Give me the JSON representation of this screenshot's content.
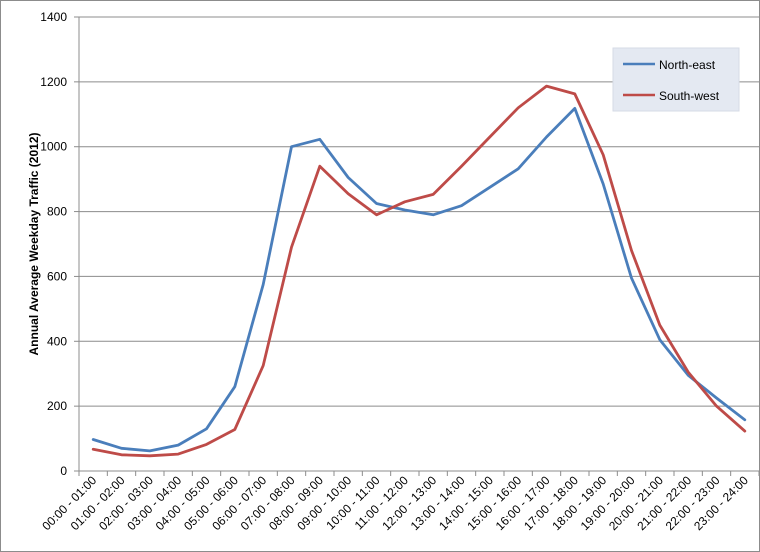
{
  "chart_data": {
    "type": "line",
    "title": "",
    "xlabel": "",
    "ylabel": "Annual Average Weekday Traffic (2012)",
    "ylim": [
      0,
      1400
    ],
    "yticks": [
      0,
      200,
      400,
      600,
      800,
      1000,
      1200,
      1400
    ],
    "grid": true,
    "legend_position": "top-right",
    "categories": [
      "00:00 - 01:00",
      "01:00 - 02:00",
      "02:00 - 03:00",
      "03:00 - 04:00",
      "04:00 - 05:00",
      "05:00 - 06:00",
      "06:00 - 07:00",
      "07:00 - 08:00",
      "08:00 - 09:00",
      "09:00 - 10:00",
      "10:00 - 11:00",
      "11:00 - 12:00",
      "12:00 - 13:00",
      "13:00 - 14:00",
      "14:00 - 15:00",
      "15:00 - 16:00",
      "16:00 - 17:00",
      "17:00 - 18:00",
      "18:00 - 19:00",
      "19:00 - 20:00",
      "20:00 - 21:00",
      "21:00 - 22:00",
      "22:00 - 23:00",
      "23:00 - 24:00"
    ],
    "series": [
      {
        "name": "North-east",
        "color": "#4a7ebb",
        "values": [
          97,
          70,
          62,
          80,
          130,
          260,
          575,
          1000,
          1023,
          905,
          825,
          805,
          790,
          818,
          875,
          932,
          1030,
          1118,
          885,
          595,
          405,
          295,
          225,
          158
        ]
      },
      {
        "name": "South-west",
        "color": "#be4b48",
        "values": [
          67,
          50,
          47,
          52,
          82,
          128,
          325,
          690,
          940,
          855,
          790,
          830,
          853,
          940,
          1030,
          1120,
          1187,
          1163,
          975,
          680,
          450,
          305,
          200,
          123
        ]
      }
    ]
  }
}
